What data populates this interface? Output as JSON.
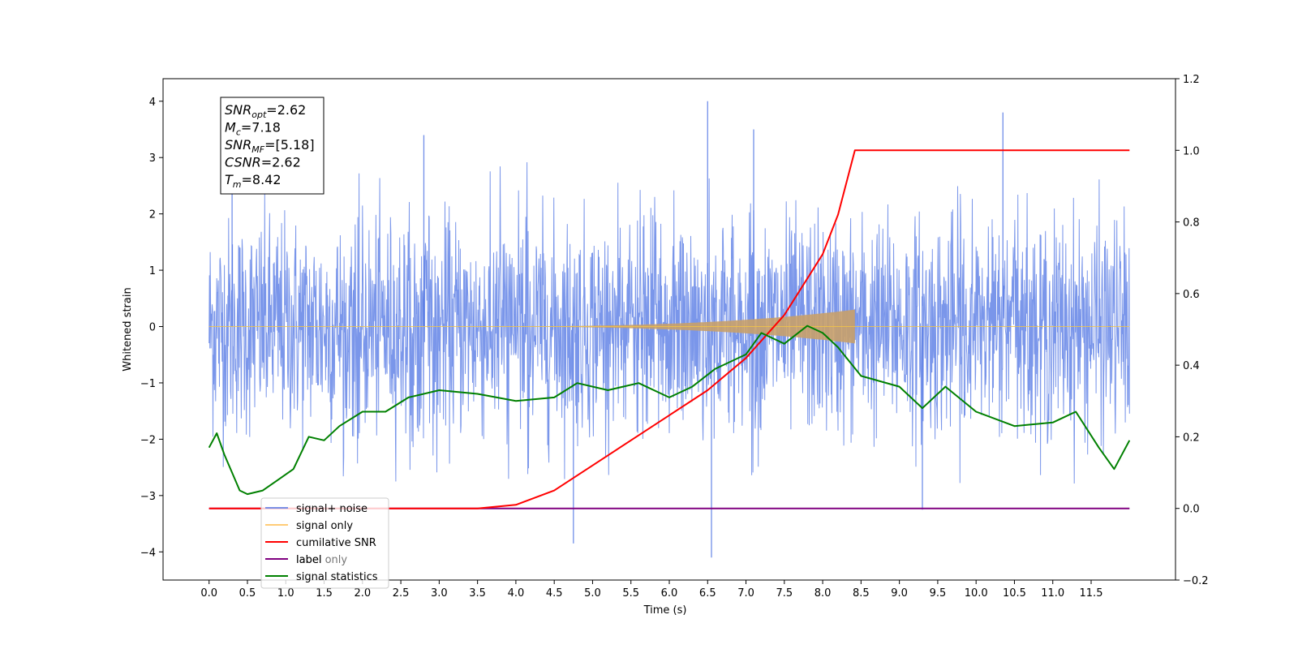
{
  "chart_data": {
    "type": "line",
    "xlabel": "Time (s)",
    "ylabel": "Whitened strain",
    "ylabel_right": "",
    "xlim": [
      -0.6,
      12.6
    ],
    "ylim": [
      -4.5,
      4.4
    ],
    "ylim_right": [
      -0.2,
      1.2
    ],
    "x_ticks": [
      "0.0",
      "0.5",
      "1.0",
      "1.5",
      "2.0",
      "2.5",
      "3.0",
      "3.5",
      "4.0",
      "4.5",
      "5.0",
      "5.5",
      "6.0",
      "6.5",
      "7.0",
      "7.5",
      "8.0",
      "8.5",
      "9.0",
      "9.5",
      "10.0",
      "10.5",
      "11.0",
      "11.5"
    ],
    "y_ticks": [
      "4",
      "3",
      "2",
      "1",
      "0",
      "−1",
      "−2",
      "−3",
      "−4"
    ],
    "y_ticks_right": [
      "1.2",
      "1.0",
      "0.8",
      "0.6",
      "0.4",
      "0.2",
      "0.0",
      "−0.2"
    ],
    "grid": false,
    "legend_position": "lower-left",
    "series": [
      {
        "name": "signal+ noise",
        "color": "#4169e1",
        "axis": "left",
        "description_values": {
          "x_range": [
            0.0,
            12.0
          ],
          "envelope_upper": 3.0,
          "envelope_lower": -2.8,
          "notable_peaks": [
            [
              0.3,
              3.0
            ],
            [
              2.8,
              3.4
            ],
            [
              6.5,
              4.0
            ],
            [
              7.1,
              3.5
            ],
            [
              10.35,
              3.8
            ],
            [
              6.55,
              -4.1
            ],
            [
              4.75,
              -3.85
            ],
            [
              9.3,
              -3.25
            ]
          ]
        }
      },
      {
        "name": "signal only",
        "color": "#f5c542",
        "axis": "left",
        "description_values": {
          "x_range": [
            0.0,
            12.0
          ],
          "chirp_end_time": 8.42,
          "chirp_end_amplitude": 0.3
        }
      },
      {
        "name": "cumilative SNR",
        "color": "#ff0000",
        "axis": "right",
        "points": [
          [
            0.0,
            0.0
          ],
          [
            3.5,
            0.0
          ],
          [
            4.0,
            0.01
          ],
          [
            4.5,
            0.05
          ],
          [
            5.0,
            0.12
          ],
          [
            5.5,
            0.19
          ],
          [
            6.0,
            0.26
          ],
          [
            6.5,
            0.33
          ],
          [
            7.0,
            0.42
          ],
          [
            7.5,
            0.54
          ],
          [
            8.0,
            0.71
          ],
          [
            8.2,
            0.82
          ],
          [
            8.42,
            1.0
          ],
          [
            12.0,
            1.0
          ]
        ]
      },
      {
        "name": "label",
        "color": "#800080",
        "axis": "right",
        "points": [
          [
            0.0,
            0.0
          ],
          [
            12.0,
            0.0
          ]
        ]
      },
      {
        "name": "label only",
        "color": "#d8d8d8",
        "axis": "right",
        "points": []
      },
      {
        "name": "signal statistics",
        "color": "#008000",
        "axis": "right",
        "points": [
          [
            0.0,
            0.17
          ],
          [
            0.1,
            0.21
          ],
          [
            0.2,
            0.15
          ],
          [
            0.3,
            0.1
          ],
          [
            0.4,
            0.05
          ],
          [
            0.5,
            0.04
          ],
          [
            0.7,
            0.05
          ],
          [
            0.9,
            0.08
          ],
          [
            1.1,
            0.11
          ],
          [
            1.3,
            0.2
          ],
          [
            1.5,
            0.19
          ],
          [
            1.7,
            0.23
          ],
          [
            2.0,
            0.27
          ],
          [
            2.3,
            0.27
          ],
          [
            2.6,
            0.31
          ],
          [
            3.0,
            0.33
          ],
          [
            3.5,
            0.32
          ],
          [
            4.0,
            0.3
          ],
          [
            4.5,
            0.31
          ],
          [
            4.8,
            0.35
          ],
          [
            5.2,
            0.33
          ],
          [
            5.6,
            0.35
          ],
          [
            6.0,
            0.31
          ],
          [
            6.3,
            0.34
          ],
          [
            6.6,
            0.39
          ],
          [
            7.0,
            0.43
          ],
          [
            7.2,
            0.49
          ],
          [
            7.5,
            0.46
          ],
          [
            7.8,
            0.51
          ],
          [
            8.0,
            0.49
          ],
          [
            8.2,
            0.45
          ],
          [
            8.5,
            0.37
          ],
          [
            9.0,
            0.34
          ],
          [
            9.3,
            0.28
          ],
          [
            9.6,
            0.34
          ],
          [
            10.0,
            0.27
          ],
          [
            10.5,
            0.23
          ],
          [
            11.0,
            0.24
          ],
          [
            11.3,
            0.27
          ],
          [
            11.6,
            0.17
          ],
          [
            11.8,
            0.11
          ],
          [
            12.0,
            0.19
          ]
        ]
      }
    ],
    "annotation": {
      "lines": [
        {
          "base": "SNR",
          "sub": "opt",
          "value": "=2.62"
        },
        {
          "base": "M",
          "sub": "c",
          "value": "=7.18"
        },
        {
          "base": "SNR",
          "sub": "MF",
          "value": "=[5.18]"
        },
        {
          "base": "CSNR",
          "sub": "",
          "value": "=2.62"
        },
        {
          "base": "T",
          "sub": "m",
          "value": "=8.42"
        }
      ]
    }
  }
}
